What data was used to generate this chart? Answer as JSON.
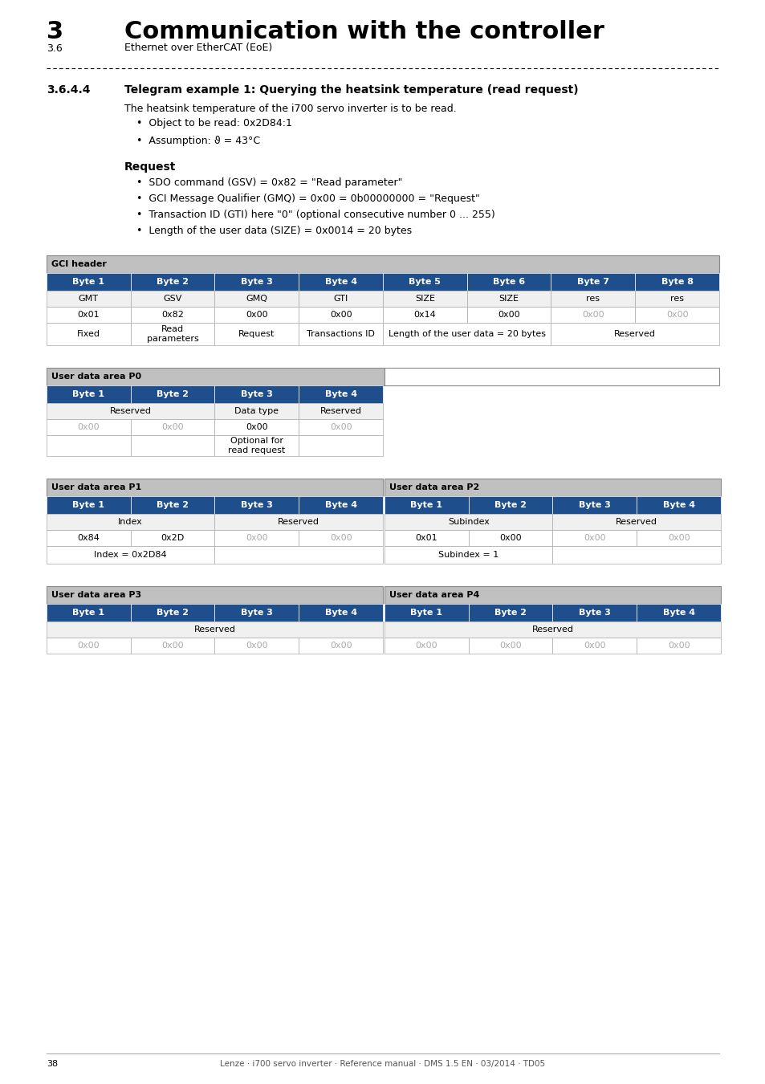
{
  "page_bg": "#ffffff",
  "header_num": "3",
  "header_title": "Communication with the controller",
  "header_sub_num": "3.6",
  "header_sub_title": "Ethernet over EtherCAT (EoE)",
  "section_num": "3.6.4.4",
  "section_title": "Telegram example 1: Querying the heatsink temperature (read request)",
  "intro_text": "The heatsink temperature of the i700 servo inverter is to be read.",
  "bullets_intro": [
    "Object to be read: 0x2D84:1",
    "Assumption: ϑ = 43°C"
  ],
  "request_title": "Request",
  "bullets_request": [
    "SDO command (GSV) = 0x82 = \"Read parameter\"",
    "GCI Message Qualifier (GMQ) = 0x00 = 0b00000000 = \"Request\"",
    "Transaction ID (GTI) here \"0\" (optional consecutive number 0 ... 255)",
    "Length of the user data (SIZE) = 0x0014 = 20 bytes"
  ],
  "table_header_color": "#1f4e8c",
  "table_header_text_color": "#ffffff",
  "table_section_bg": "#c0c0c0",
  "table_section_text_color": "#000000",
  "table_row_bg": "#ffffff",
  "table_row_alt_bg": "#e8e8e8",
  "table_border_color": "#888888",
  "table_grey_text": "#999999",
  "footer_text": "Lenze · i700 servo inverter · Reference manual · DMS 1.5 EN · 03/2014 · TD05",
  "page_num": "38"
}
